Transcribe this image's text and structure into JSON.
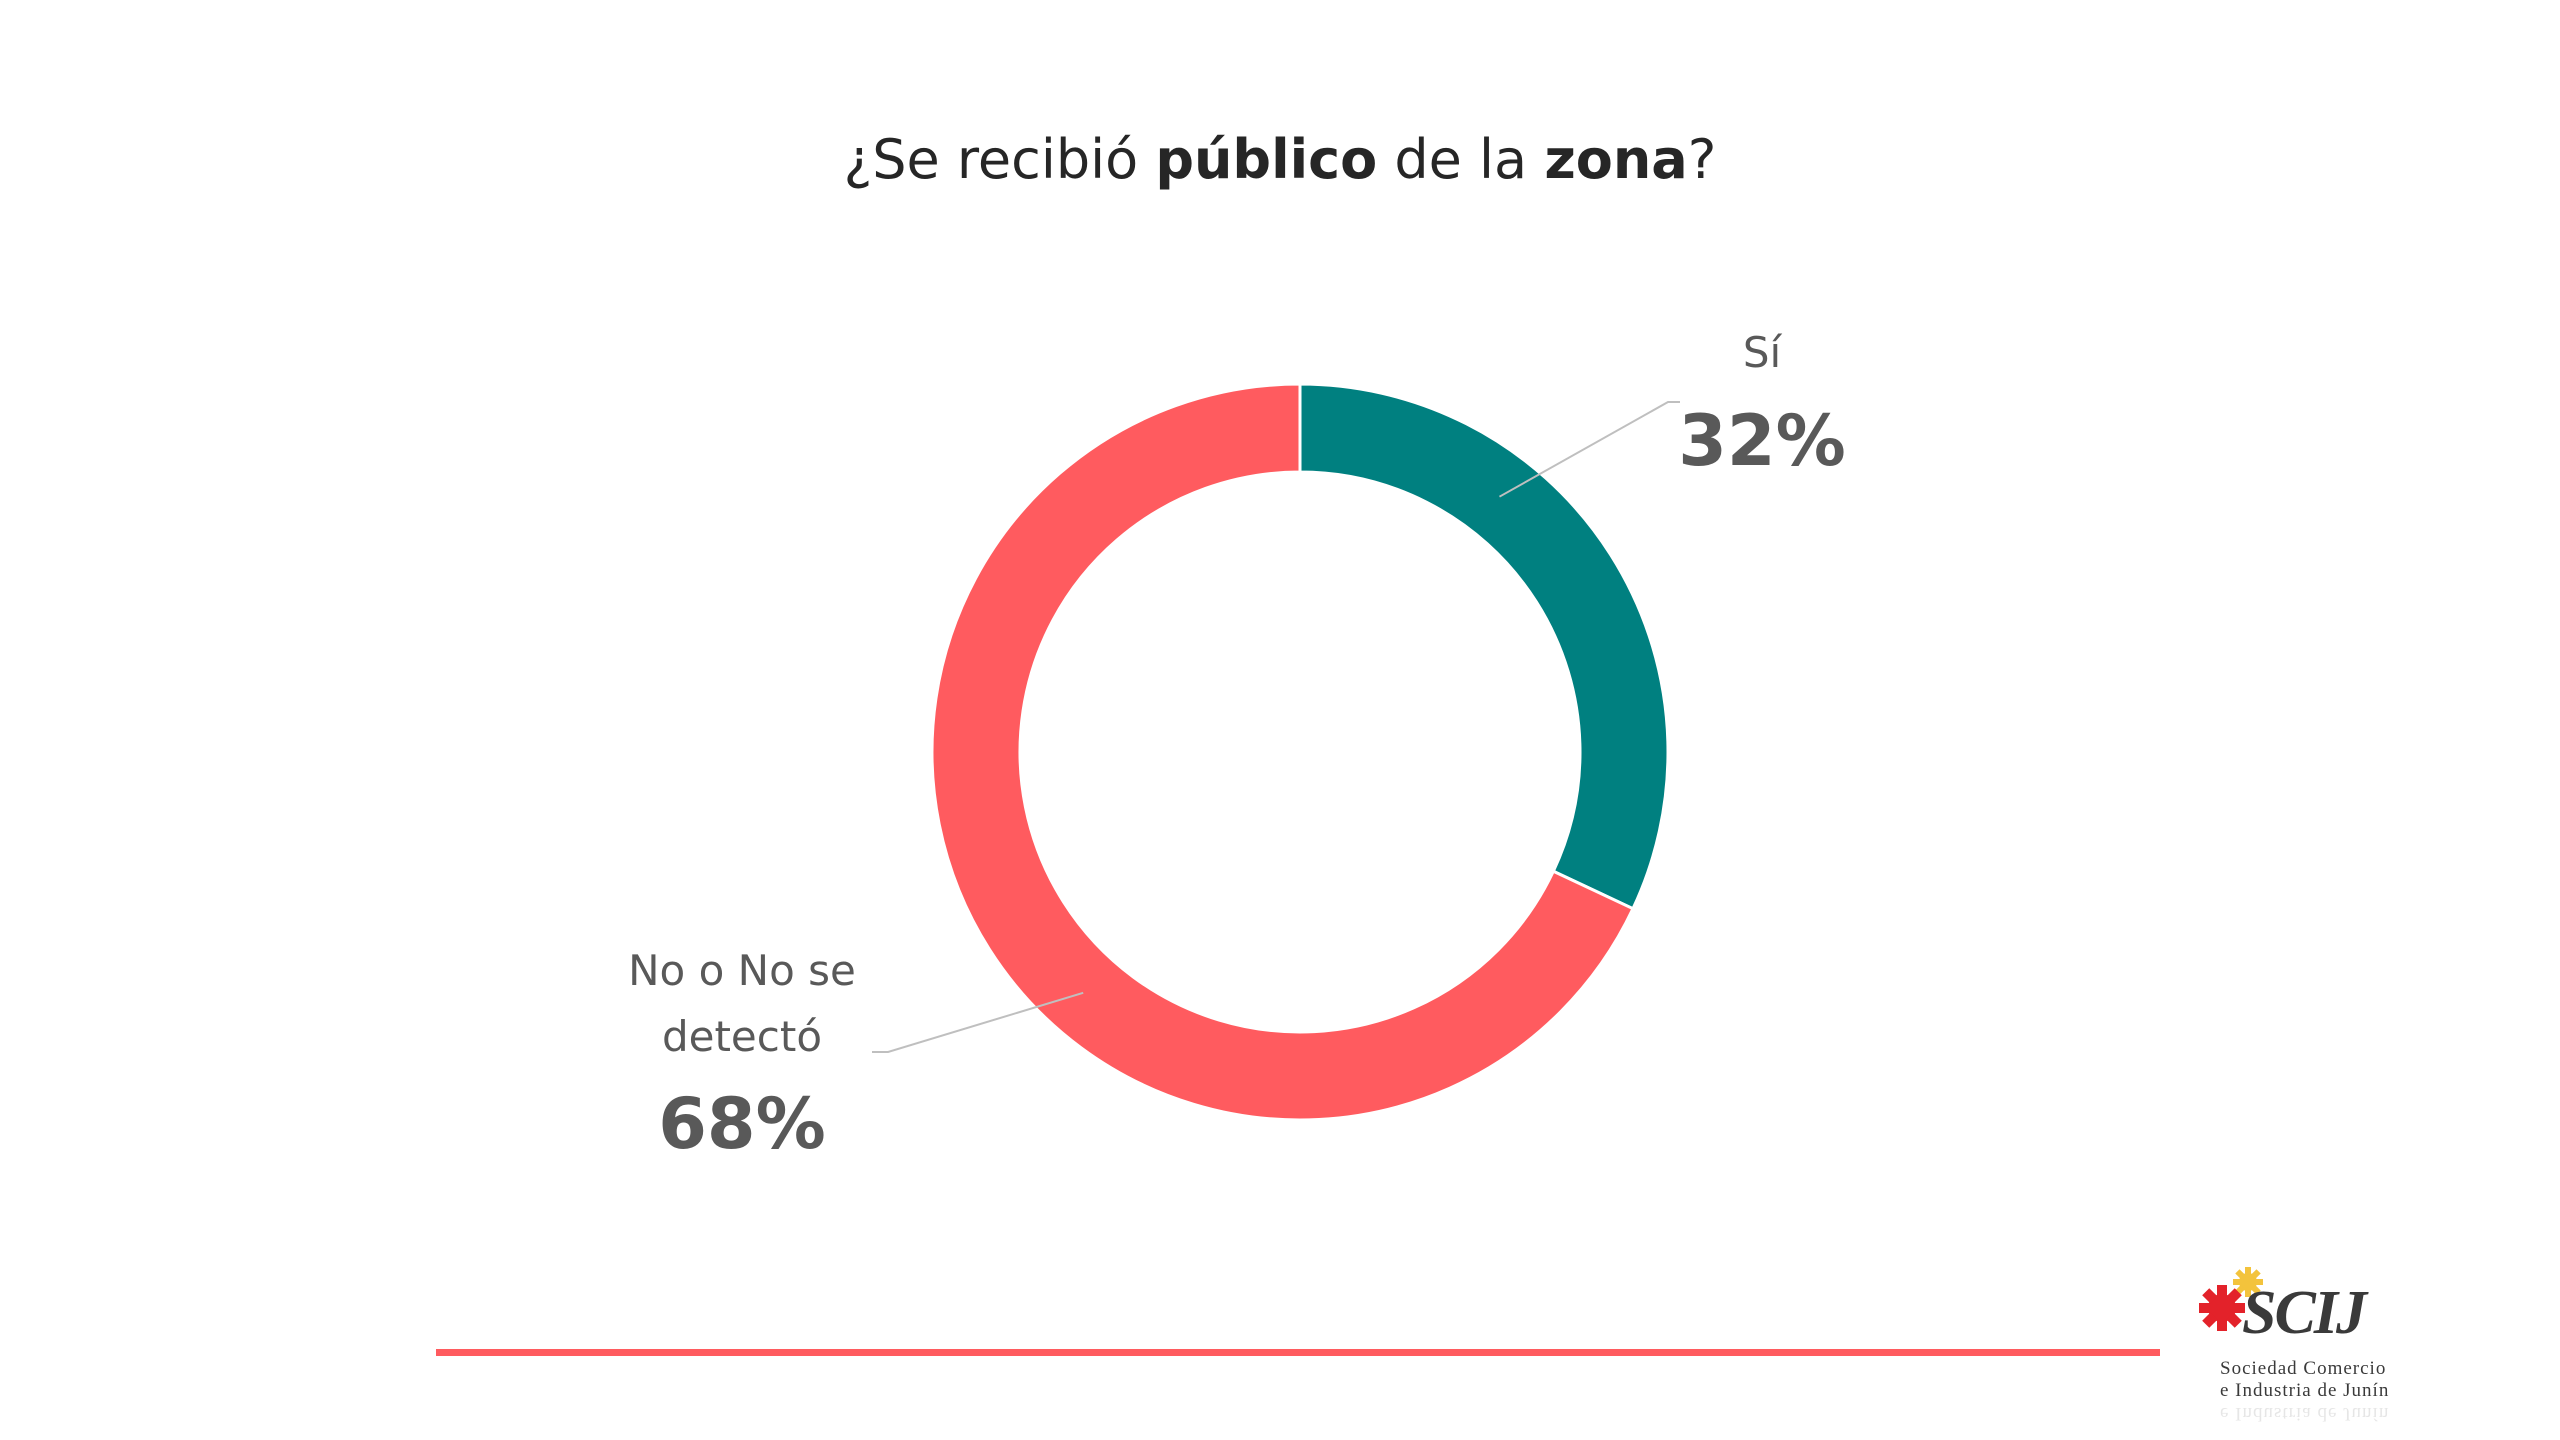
{
  "title": {
    "prefix": "¿Se recibió ",
    "bold1": "público",
    "middle": " de la ",
    "bold2": "zona",
    "suffix": "?"
  },
  "chart_data": {
    "type": "pie",
    "variant": "donut",
    "title": "¿Se recibió público de la zona?",
    "slices": [
      {
        "label": "Sí",
        "value": 32,
        "display": "32%",
        "color": "#008080"
      },
      {
        "label": "No o No se detectó",
        "label_lines": [
          "No o No se",
          "detectó"
        ],
        "value": 68,
        "display": "68%",
        "color": "#ff5b5f"
      }
    ],
    "start_angle_deg": 0,
    "direction": "clockwise",
    "legend": "none",
    "data_labels": "outside-with-leader-lines"
  },
  "footer": {
    "line_color": "#ff5b5f",
    "logo": {
      "name": "SCIJ",
      "line1": "Sociedad  Comercio",
      "line2": "e  Industria de Junín"
    }
  }
}
